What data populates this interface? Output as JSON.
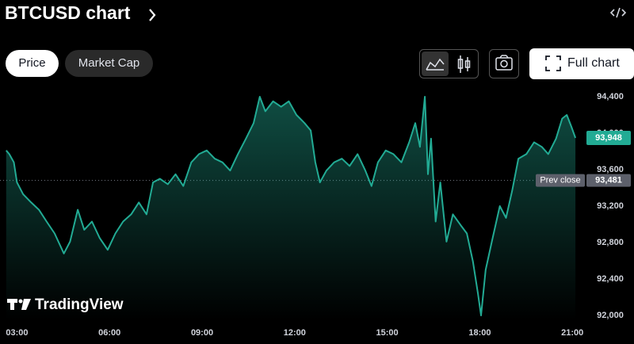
{
  "chart_data": {
    "type": "area",
    "title": "BTCUSD chart",
    "controls": {
      "price": "Price",
      "market_cap": "Market Cap",
      "full_chart": "Full chart"
    },
    "watermark": "TradingView",
    "color": "#22ab94",
    "x": [
      2.65,
      2.75,
      2.9,
      3.0,
      3.2,
      3.46,
      3.71,
      3.96,
      4.22,
      4.52,
      4.72,
      4.97,
      5.18,
      5.43,
      5.68,
      5.94,
      6.19,
      6.44,
      6.7,
      6.95,
      7.2,
      7.41,
      7.63,
      7.89,
      8.14,
      8.39,
      8.65,
      8.9,
      9.15,
      9.41,
      9.66,
      9.91,
      10.16,
      10.42,
      10.67,
      10.87,
      11.05,
      11.3,
      11.56,
      11.81,
      12.06,
      12.32,
      12.52,
      12.67,
      12.82,
      13.03,
      13.28,
      13.53,
      13.78,
      14.04,
      14.29,
      14.49,
      14.7,
      14.95,
      15.2,
      15.46,
      15.71,
      15.91,
      16.06,
      16.22,
      16.32,
      16.42,
      16.57,
      16.72,
      16.92,
      17.13,
      17.38,
      17.58,
      17.78,
      17.94,
      18.04,
      18.19,
      18.39,
      18.65,
      18.85,
      19.05,
      19.25,
      19.51,
      19.76,
      20.01,
      20.22,
      20.47,
      20.67,
      20.82,
      20.97,
      21.1
    ],
    "values": [
      93810,
      93770,
      93680,
      93460,
      93330,
      93240,
      93160,
      93030,
      92900,
      92680,
      92810,
      93160,
      92940,
      93030,
      92850,
      92720,
      92900,
      93030,
      93110,
      93240,
      93110,
      93460,
      93500,
      93440,
      93550,
      93420,
      93680,
      93770,
      93810,
      93720,
      93680,
      93590,
      93770,
      93940,
      94110,
      94400,
      94240,
      94350,
      94290,
      94350,
      94200,
      94110,
      94030,
      93680,
      93460,
      93590,
      93680,
      93720,
      93640,
      93770,
      93590,
      93420,
      93680,
      93810,
      93770,
      93680,
      93900,
      94110,
      93850,
      94400,
      93550,
      93940,
      93030,
      93460,
      92810,
      93110,
      92990,
      92900,
      92590,
      92240,
      92000,
      92500,
      92810,
      93200,
      93070,
      93370,
      93720,
      93770,
      93900,
      93850,
      93770,
      93940,
      94160,
      94200,
      94070,
      93948
    ],
    "xlim": [
      2.45,
      21.2
    ],
    "xticks": [
      {
        "value": 3,
        "label": "03:00"
      },
      {
        "value": 6,
        "label": "06:00"
      },
      {
        "value": 9,
        "label": "09:00"
      },
      {
        "value": 12,
        "label": "12:00"
      },
      {
        "value": 15,
        "label": "15:00"
      },
      {
        "value": 18,
        "label": "18:00"
      },
      {
        "value": 21,
        "label": "21:00"
      }
    ],
    "ylim": [
      91950,
      94600
    ],
    "yticks": [
      {
        "value": 92000,
        "label": "92,000"
      },
      {
        "value": 92400,
        "label": "92,400"
      },
      {
        "value": 92800,
        "label": "92,800"
      },
      {
        "value": 93200,
        "label": "93,200"
      },
      {
        "value": 93600,
        "label": "93,600"
      },
      {
        "value": 94000,
        "label": "94,000"
      },
      {
        "value": 94400,
        "label": "94,400"
      }
    ],
    "grid": false,
    "last_price": {
      "value": 93948,
      "label": "93,948"
    },
    "prev_close": {
      "name": "Prev close",
      "value": 93481,
      "label": "93,481"
    }
  }
}
